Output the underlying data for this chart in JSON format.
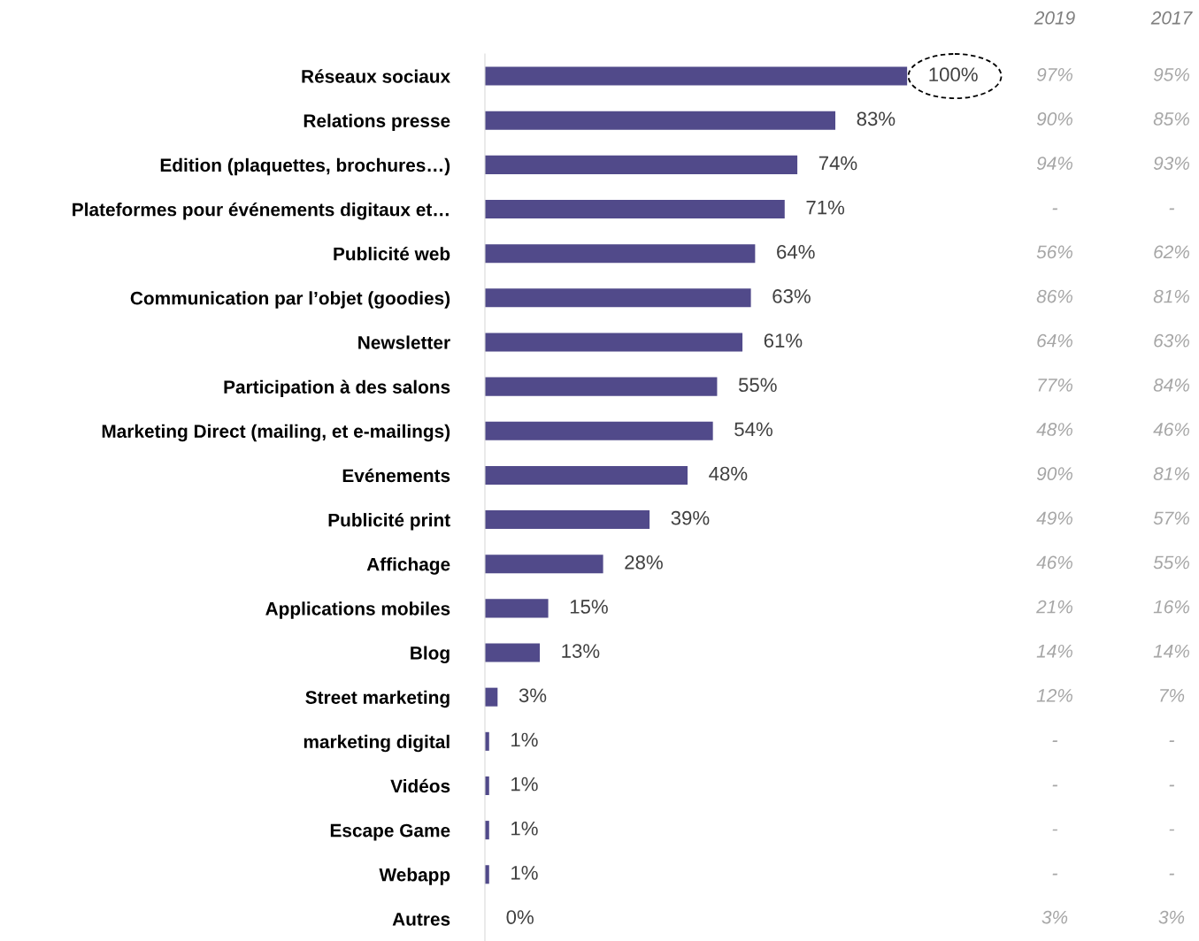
{
  "chart_data": {
    "type": "bar",
    "orientation": "horizontal",
    "categories": [
      "Réseaux sociaux",
      "Relations presse",
      "Edition (plaquettes, brochures…)",
      "Plateformes pour événements digitaux et…",
      "Publicité web",
      "Communication par l’objet (goodies)",
      "Newsletter",
      "Participation à des salons",
      "Marketing Direct (mailing, et e-mailings)",
      "Evénements",
      "Publicité print",
      "Affichage",
      "Applications mobiles",
      "Blog",
      "Street marketing",
      "marketing digital",
      "Vidéos",
      "Escape Game",
      "Webapp",
      "Autres"
    ],
    "values": [
      100,
      83,
      74,
      71,
      64,
      63,
      61,
      55,
      54,
      48,
      39,
      28,
      15,
      13,
      3,
      1,
      1,
      1,
      1,
      0
    ],
    "value_labels": [
      "100%",
      "83%",
      "74%",
      "71%",
      "64%",
      "63%",
      "61%",
      "55%",
      "54%",
      "48%",
      "39%",
      "28%",
      "15%",
      "13%",
      "3%",
      "1%",
      "1%",
      "1%",
      "1%",
      "0%"
    ],
    "color": "#514a8a",
    "tick_labels": "y",
    "grid": false,
    "legend": false,
    "annotations": [
      "2019",
      "2017",
      "97%",
      "95%",
      "90%",
      "85%",
      "94%",
      "93%",
      "-",
      "-",
      "56%",
      "62%",
      "86%",
      "81%",
      "64%",
      "63%",
      "77%",
      "84%",
      "48%",
      "46%",
      "90%",
      "81%",
      "49%",
      "57%",
      "46%",
      "55%",
      "21%",
      "16%",
      "14%",
      "14%",
      "12%",
      "7%",
      "-",
      "-",
      "-",
      "-",
      "-",
      "-",
      "-",
      "-",
      "3%",
      "3%"
    ]
  }
}
